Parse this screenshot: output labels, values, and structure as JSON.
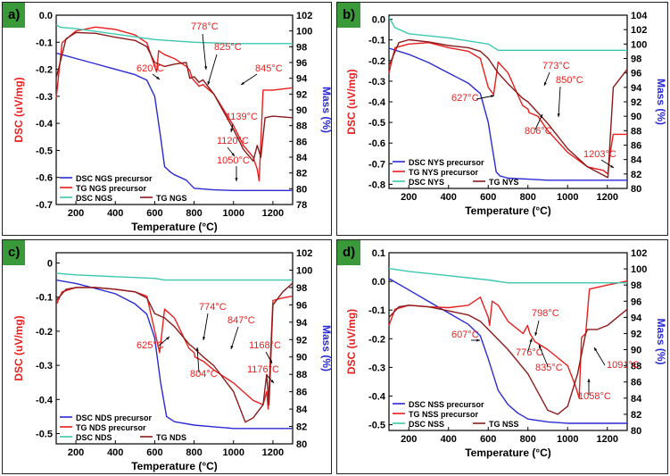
{
  "chart_data": [
    {
      "type": "line",
      "panel_label": "a)",
      "xlabel": "Temperature (°C)",
      "ylabel_left": "DSC (uV/mg)",
      "ylabel_right": "Mass (%)",
      "xlim": [
        100,
        1300
      ],
      "xticks": [
        200,
        400,
        600,
        800,
        1000,
        1200
      ],
      "ylim_left": [
        -0.7,
        0.0
      ],
      "yticks_left": [
        0.0,
        -0.1,
        -0.2,
        -0.3,
        -0.4,
        -0.5,
        -0.6,
        -0.7
      ],
      "ytick_labels_left": [
        "0.0",
        "-0.1",
        "-0.2",
        "-0.3",
        "-0.4",
        "-0.5",
        "-0.6",
        "-0.7"
      ],
      "ylim_right": [
        78,
        102
      ],
      "yticks_right": [
        78,
        80,
        82,
        84,
        86,
        88,
        90,
        92,
        94,
        96,
        98,
        100,
        102
      ],
      "legend_position": "bottom-left",
      "series": [
        {
          "name": "DSC NGS precursor",
          "axis": "left",
          "color": "#2a2ad4",
          "x": [
            100,
            200,
            300,
            400,
            500,
            560,
            600,
            630,
            650,
            680,
            700,
            760,
            800,
            900,
            1000,
            1100,
            1200,
            1300
          ],
          "y": [
            -0.14,
            -0.16,
            -0.18,
            -0.2,
            -0.22,
            -0.24,
            -0.3,
            -0.45,
            -0.56,
            -0.58,
            -0.59,
            -0.61,
            -0.64,
            -0.646,
            -0.648,
            -0.648,
            -0.648,
            -0.648
          ]
        },
        {
          "name": "TG NGS precursor",
          "axis": "right",
          "color": "#e81e1e",
          "x": [
            100,
            130,
            200,
            300,
            400,
            500,
            560,
            600,
            610,
            620,
            650,
            700,
            760,
            778,
            790,
            825,
            845,
            900,
            1000,
            1050,
            1100,
            1120,
            1130,
            1139,
            1150,
            1200,
            1300
          ],
          "y": [
            91.5,
            98.5,
            100.0,
            100.5,
            100.2,
            99.5,
            98.5,
            95.5,
            94.8,
            97.5,
            97.0,
            96.5,
            95.5,
            95.0,
            94.0,
            93.0,
            93.2,
            92.0,
            88.0,
            85.5,
            84.0,
            82.5,
            81.0,
            86.0,
            92.5,
            92.5,
            92.8
          ]
        },
        {
          "name": "DSC NGS",
          "axis": "left",
          "color": "#3cc8b0",
          "x": [
            100,
            120,
            200,
            400,
            600,
            800,
            1000,
            1200,
            1300
          ],
          "y": [
            -0.035,
            -0.045,
            -0.05,
            -0.07,
            -0.09,
            -0.1,
            -0.105,
            -0.105,
            -0.105
          ]
        },
        {
          "name": "TG NGS",
          "axis": "right",
          "color": "#8b1a1a",
          "x": [
            100,
            150,
            200,
            300,
            400,
            500,
            560,
            600,
            650,
            700,
            760,
            778,
            800,
            825,
            845,
            900,
            1000,
            1050,
            1100,
            1120,
            1139,
            1160,
            1200,
            1300
          ],
          "y": [
            94.0,
            99.0,
            99.8,
            99.7,
            99.2,
            98.8,
            98.0,
            96.0,
            95.5,
            95.8,
            96.0,
            94.0,
            94.2,
            93.5,
            93.8,
            92.0,
            87.5,
            85.0,
            83.5,
            85.5,
            84.0,
            89.0,
            89.2,
            89.0
          ]
        }
      ],
      "annotations": [
        "778°C",
        "825°C",
        "620°C",
        "845°C",
        "1139°C",
        "1120°C",
        "1050°C"
      ]
    },
    {
      "type": "line",
      "panel_label": "b)",
      "xlabel": "Temperature (°C)",
      "ylabel_left": "DSC (uV/mg)",
      "ylabel_right": "Mass (%)",
      "xlim": [
        100,
        1300
      ],
      "xticks": [
        200,
        400,
        600,
        800,
        1000,
        1200
      ],
      "ylim_left": [
        -0.82,
        0.02
      ],
      "yticks_left": [
        0.0,
        -0.1,
        -0.2,
        -0.3,
        -0.4,
        -0.5,
        -0.6,
        -0.7,
        -0.8
      ],
      "ytick_labels_left": [
        "0.0",
        "-0.1",
        "-0.2",
        "-0.3",
        "-0.4",
        "-0.5",
        "-0.6",
        "-0.7",
        "-0.8"
      ],
      "ylim_right": [
        80,
        104
      ],
      "yticks_right": [
        80,
        82,
        84,
        86,
        88,
        90,
        92,
        94,
        96,
        98,
        100,
        102,
        104
      ],
      "legend_position": "bottom-left",
      "series": [
        {
          "name": "DSC NYS precursor",
          "axis": "left",
          "color": "#2a2ad4",
          "x": [
            100,
            200,
            300,
            400,
            500,
            560,
            600,
            620,
            640,
            660,
            700,
            800,
            900,
            1000,
            1100,
            1200,
            1300
          ],
          "y": [
            -0.14,
            -0.17,
            -0.21,
            -0.26,
            -0.31,
            -0.36,
            -0.5,
            -0.62,
            -0.74,
            -0.76,
            -0.77,
            -0.775,
            -0.78,
            -0.78,
            -0.78,
            -0.78,
            -0.78
          ]
        },
        {
          "name": "TG NYS precursor",
          "axis": "right",
          "color": "#e81e1e",
          "x": [
            100,
            130,
            200,
            300,
            400,
            500,
            560,
            600,
            627,
            650,
            700,
            773,
            800,
            806,
            850,
            900,
            1000,
            1100,
            1180,
            1203,
            1215,
            1230,
            1300
          ],
          "y": [
            96.0,
            99.5,
            100.0,
            100.2,
            99.5,
            99.0,
            98.0,
            94.0,
            93.0,
            97.5,
            96.0,
            91.5,
            91.0,
            90.5,
            90.0,
            88.0,
            85.0,
            83.0,
            82.5,
            82.0,
            85.0,
            87.5,
            87.5
          ]
        },
        {
          "name": "DSC NYS",
          "axis": "left",
          "color": "#3cc8b0",
          "x": [
            100,
            130,
            200,
            400,
            600,
            650,
            800,
            1000,
            1200,
            1300
          ],
          "y": [
            0.01,
            -0.04,
            -0.07,
            -0.09,
            -0.12,
            -0.15,
            -0.15,
            -0.15,
            -0.15,
            -0.15
          ]
        },
        {
          "name": "TG NYS",
          "axis": "right",
          "color": "#8b1a1a",
          "x": [
            100,
            150,
            200,
            300,
            400,
            500,
            560,
            600,
            650,
            700,
            773,
            800,
            850,
            900,
            1000,
            1100,
            1203,
            1230,
            1300
          ],
          "y": [
            97.0,
            100.2,
            100.6,
            100.3,
            99.8,
            99.5,
            99.0,
            98.0,
            96.0,
            94.5,
            92.5,
            92.0,
            90.5,
            89.0,
            85.5,
            83.0,
            81.5,
            94.0,
            96.5
          ]
        }
      ],
      "annotations": [
        "773°C",
        "850°C",
        "627°C",
        "806°C",
        "1203°C"
      ]
    },
    {
      "type": "line",
      "panel_label": "c)",
      "xlabel": "Temperature (°C)",
      "ylabel_left": "DSC (uV/mg)",
      "ylabel_right": "Mass (%)",
      "xlim": [
        100,
        1300
      ],
      "xticks": [
        200,
        400,
        600,
        800,
        1000,
        1200
      ],
      "ylim_left": [
        -0.53,
        0.03
      ],
      "yticks_left": [
        0.0,
        -0.1,
        -0.2,
        -0.3,
        -0.4,
        -0.5
      ],
      "ytick_labels_left": [
        "0",
        "-0.1",
        "-0.2",
        "-0.3",
        "-0.4",
        "-0.5"
      ],
      "ylim_right": [
        80,
        102
      ],
      "yticks_right": [
        80,
        82,
        84,
        86,
        88,
        90,
        92,
        94,
        96,
        98,
        100,
        102
      ],
      "legend_position": "bottom-left",
      "series": [
        {
          "name": "DSC NDS precursor",
          "axis": "left",
          "color": "#2a2ad4",
          "x": [
            100,
            200,
            300,
            400,
            500,
            560,
            600,
            630,
            660,
            700,
            800,
            900,
            1000,
            1100,
            1200,
            1300
          ],
          "y": [
            -0.05,
            -0.06,
            -0.075,
            -0.09,
            -0.12,
            -0.15,
            -0.22,
            -0.35,
            -0.45,
            -0.465,
            -0.475,
            -0.48,
            -0.485,
            -0.485,
            -0.485,
            -0.485
          ]
        },
        {
          "name": "TG NDS precursor",
          "axis": "right",
          "color": "#e81e1e",
          "x": [
            100,
            130,
            200,
            300,
            400,
            500,
            560,
            600,
            625,
            650,
            700,
            774,
            800,
            804,
            847,
            900,
            1000,
            1100,
            1150,
            1168,
            1176,
            1200,
            1250,
            1300
          ],
          "y": [
            96.0,
            97.5,
            98.0,
            98.0,
            97.8,
            97.5,
            97.0,
            93.0,
            90.5,
            95.5,
            94.5,
            91.0,
            90.5,
            90.0,
            89.5,
            88.5,
            87.0,
            85.0,
            84.5,
            86.0,
            84.0,
            96.5,
            96.8,
            97.0
          ]
        },
        {
          "name": "DSC NDS",
          "axis": "left",
          "color": "#3cc8b0",
          "x": [
            100,
            200,
            400,
            600,
            650,
            800,
            1000,
            1200,
            1300
          ],
          "y": [
            -0.03,
            -0.035,
            -0.04,
            -0.045,
            -0.05,
            -0.05,
            -0.05,
            -0.05,
            -0.05
          ]
        },
        {
          "name": "TG NDS",
          "axis": "right",
          "color": "#8b1a1a",
          "x": [
            100,
            150,
            200,
            300,
            400,
            500,
            560,
            600,
            650,
            700,
            774,
            800,
            847,
            900,
            1000,
            1060,
            1100,
            1150,
            1168,
            1180,
            1200,
            1250,
            1300
          ],
          "y": [
            96.5,
            97.8,
            98.0,
            98.0,
            97.8,
            97.5,
            96.8,
            95.0,
            94.5,
            93.5,
            91.5,
            91.0,
            90.0,
            89.0,
            86.0,
            82.5,
            83.0,
            84.5,
            88.0,
            84.5,
            96.0,
            97.5,
            98.5
          ]
        }
      ],
      "annotations": [
        "774°C",
        "847°C",
        "625°C",
        "1168°C",
        "804°C",
        "1176°C"
      ]
    },
    {
      "type": "line",
      "panel_label": "d)",
      "xlabel": "Temperature (°C)",
      "ylabel_left": "DSC (uV/mg)",
      "ylabel_right": "Mass (%)",
      "xlim": [
        100,
        1300
      ],
      "xticks": [
        200,
        400,
        600,
        800,
        1000,
        1200
      ],
      "ylim_left": [
        -0.52,
        0.1
      ],
      "yticks_left": [
        0.1,
        0.0,
        -0.1,
        -0.2,
        -0.3,
        -0.4,
        -0.5
      ],
      "ytick_labels_left": [
        "0.1",
        "0.0",
        "-0.1",
        "-0.2",
        "-0.3",
        "-0.4",
        "-0.5"
      ],
      "ylim_right": [
        80,
        102
      ],
      "yticks_right": [
        80,
        82,
        84,
        86,
        88,
        90,
        92,
        94,
        96,
        98,
        100,
        102
      ],
      "legend_position": "bottom-left",
      "series": [
        {
          "name": "DSC NSS precursor",
          "axis": "left",
          "color": "#2a2ad4",
          "x": [
            100,
            200,
            300,
            400,
            500,
            560,
            600,
            650,
            700,
            750,
            800,
            900,
            1000,
            1100,
            1200,
            1300
          ],
          "y": [
            0.01,
            -0.03,
            -0.07,
            -0.11,
            -0.15,
            -0.19,
            -0.27,
            -0.38,
            -0.43,
            -0.46,
            -0.48,
            -0.49,
            -0.495,
            -0.495,
            -0.495,
            -0.495
          ]
        },
        {
          "name": "TG NSS precursor",
          "axis": "right",
          "color": "#e81e1e",
          "x": [
            100,
            130,
            200,
            300,
            400,
            500,
            560,
            600,
            607,
            620,
            650,
            700,
            776,
            798,
            810,
            835,
            900,
            1000,
            1040,
            1058,
            1070,
            1091,
            1110,
            1200,
            1300
          ],
          "y": [
            93.0,
            95.0,
            95.5,
            95.3,
            95.2,
            95.5,
            96.5,
            94.0,
            93.0,
            96.0,
            95.5,
            93.5,
            92.0,
            93.0,
            92.0,
            91.0,
            90.0,
            88.0,
            85.5,
            84.0,
            91.5,
            92.0,
            97.5,
            98.0,
            98.5
          ]
        },
        {
          "name": "DSC NSS",
          "axis": "left",
          "color": "#3cc8b0",
          "x": [
            100,
            200,
            400,
            600,
            700,
            800,
            1000,
            1200,
            1300
          ],
          "y": [
            0.045,
            0.035,
            0.02,
            0.005,
            -0.005,
            -0.005,
            -0.005,
            -0.005,
            -0.005
          ]
        },
        {
          "name": "TG NSS",
          "axis": "right",
          "color": "#8b1a1a",
          "x": [
            100,
            150,
            200,
            300,
            400,
            500,
            560,
            600,
            700,
            800,
            900,
            950,
            1000,
            1050,
            1058,
            1091,
            1100,
            1150,
            1200,
            1300
          ],
          "y": [
            94.0,
            95.3,
            95.5,
            95.3,
            94.8,
            94.3,
            93.5,
            92.5,
            90.0,
            87.0,
            82.5,
            82.0,
            83.0,
            87.0,
            88.0,
            92.0,
            92.5,
            92.5,
            93.0,
            95.0
          ]
        }
      ],
      "annotations": [
        "798°C",
        "607°C",
        "776°C",
        "835°C",
        "1091°C",
        "1058°C"
      ]
    }
  ]
}
